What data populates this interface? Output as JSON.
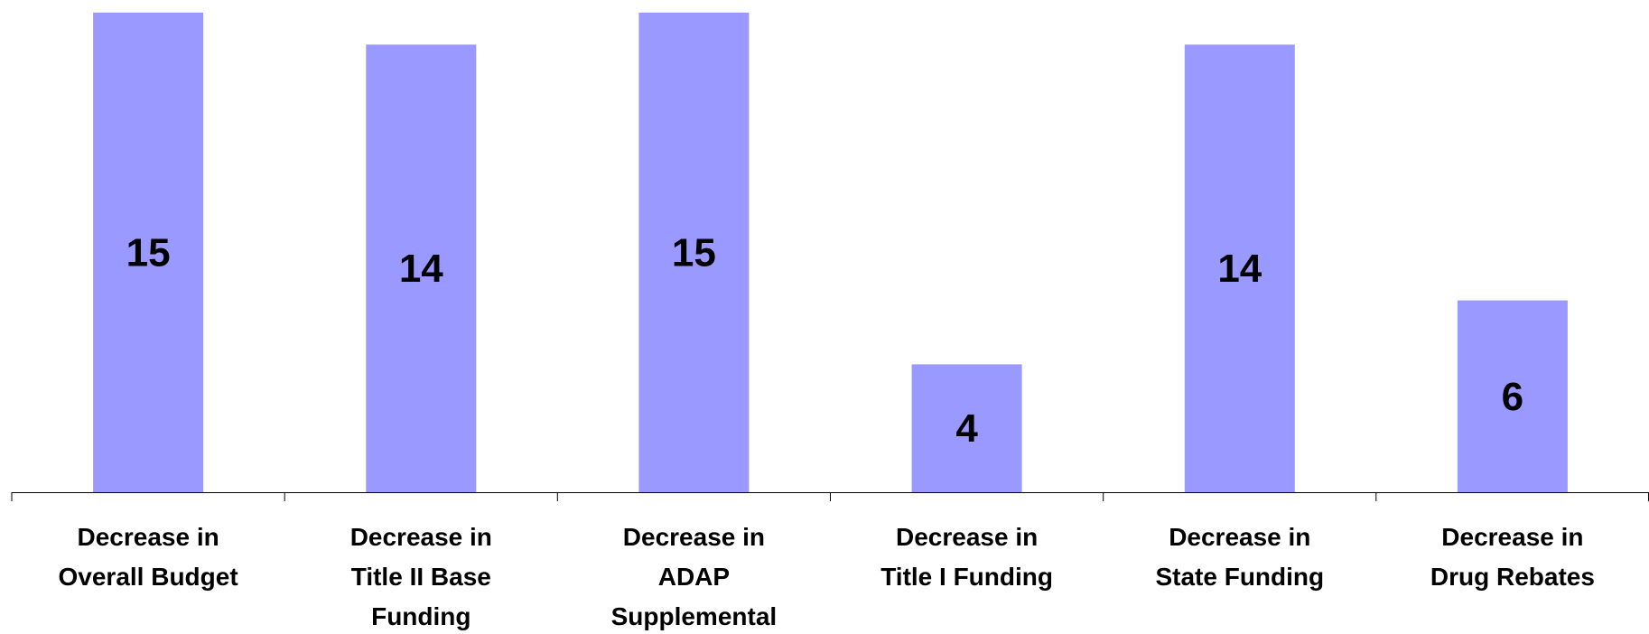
{
  "chart_data": {
    "type": "bar",
    "title": "",
    "xlabel": "",
    "ylabel": "",
    "ylim": [
      0,
      15
    ],
    "grid": false,
    "legend": "none",
    "categories": [
      [
        "Decrease in",
        "Overall Budget"
      ],
      [
        "Decrease in",
        "Title II Base",
        "Funding"
      ],
      [
        "Decrease in",
        "ADAP",
        "Supplemental"
      ],
      [
        "Decrease in",
        "Title I Funding"
      ],
      [
        "Decrease in",
        "State Funding"
      ],
      [
        "Decrease in",
        "Drug Rebates"
      ]
    ],
    "values": [
      15,
      14,
      15,
      4,
      14,
      6
    ],
    "bar_color": "#9999ff",
    "axis_color": "#000000"
  }
}
